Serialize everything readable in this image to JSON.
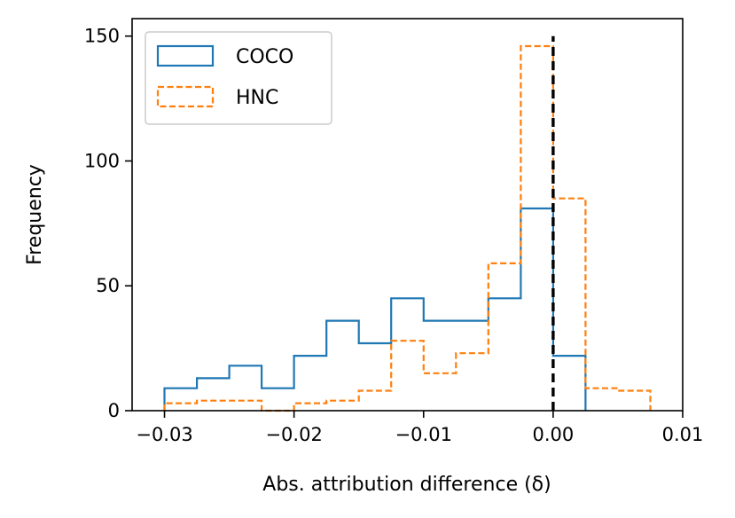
{
  "chart_data": {
    "type": "histogram",
    "xlabel": "Abs. attribution difference (δ)",
    "ylabel": "Frequency",
    "xlim": [
      -0.0325,
      0.01
    ],
    "ylim": [
      0,
      157
    ],
    "x_ticks": [
      -0.03,
      -0.02,
      -0.01,
      0.0,
      0.01
    ],
    "x_tick_labels": [
      "−0.03",
      "−0.02",
      "−0.01",
      "0.00",
      "0.01"
    ],
    "y_ticks": [
      0,
      50,
      100,
      150
    ],
    "y_tick_labels": [
      "0",
      "50",
      "100",
      "150"
    ],
    "grid": false,
    "legend_position": "upper-left",
    "reference_line": {
      "x": 0.0,
      "y_range": [
        0,
        150
      ],
      "style": "dashed",
      "color": "#000000"
    },
    "series": [
      {
        "name": "COCO",
        "style": "solid",
        "color": "#1f77b4",
        "bin_edges": [
          -0.03,
          -0.0275,
          -0.025,
          -0.0225,
          -0.02,
          -0.0175,
          -0.015,
          -0.0125,
          -0.01,
          -0.0075,
          -0.005,
          -0.0025,
          0.0,
          0.0025
        ],
        "counts": [
          9,
          13,
          18,
          9,
          22,
          36,
          27,
          45,
          36,
          36,
          45,
          81,
          22
        ]
      },
      {
        "name": "HNC",
        "style": "dashed",
        "color": "#ff7f0e",
        "bin_edges": [
          -0.03,
          -0.0275,
          -0.025,
          -0.0225,
          -0.02,
          -0.0175,
          -0.015,
          -0.0125,
          -0.01,
          -0.0075,
          -0.005,
          -0.0025,
          0.0,
          0.0025,
          0.005,
          0.0075
        ],
        "counts": [
          3,
          4,
          4,
          0,
          3,
          4,
          8,
          28,
          15,
          23,
          59,
          146,
          85,
          9,
          8
        ]
      }
    ]
  }
}
